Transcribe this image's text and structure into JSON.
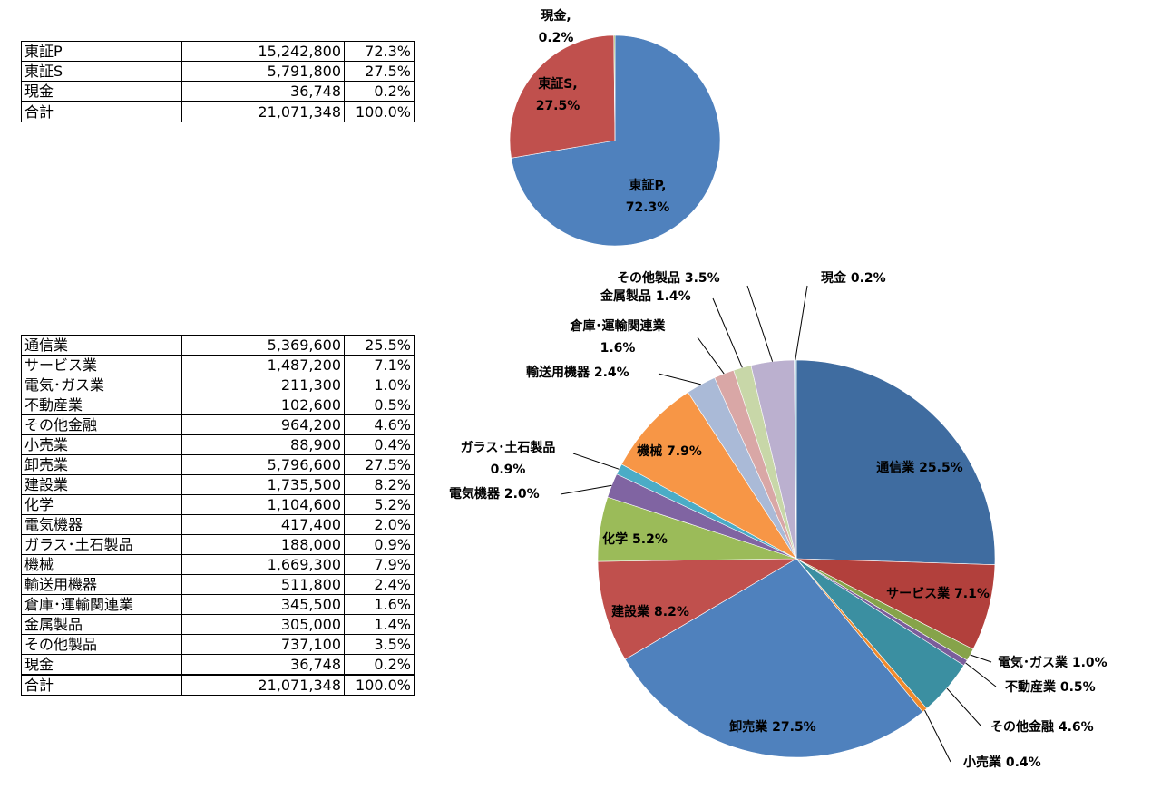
{
  "table1": {
    "rows": [
      {
        "name": "東証P",
        "value": "15,242,800",
        "pct": "72.3%"
      },
      {
        "name": "東証S",
        "value": "5,791,800",
        "pct": "27.5%"
      },
      {
        "name": "現金",
        "value": "36,748",
        "pct": "0.2%"
      }
    ],
    "total": {
      "name": "合計",
      "value": "21,071,348",
      "pct": "100.0%"
    }
  },
  "table2": {
    "rows": [
      {
        "name": "通信業",
        "value": "5,369,600",
        "pct": "25.5%"
      },
      {
        "name": "サービス業",
        "value": "1,487,200",
        "pct": "7.1%"
      },
      {
        "name": "電気･ガス業",
        "value": "211,300",
        "pct": "1.0%"
      },
      {
        "name": "不動産業",
        "value": "102,600",
        "pct": "0.5%"
      },
      {
        "name": "その他金融",
        "value": "964,200",
        "pct": "4.6%"
      },
      {
        "name": "小売業",
        "value": "88,900",
        "pct": "0.4%"
      },
      {
        "name": "卸売業",
        "value": "5,796,600",
        "pct": "27.5%"
      },
      {
        "name": "建設業",
        "value": "1,735,500",
        "pct": "8.2%"
      },
      {
        "name": "化学",
        "value": "1,104,600",
        "pct": "5.2%"
      },
      {
        "name": "電気機器",
        "value": "417,400",
        "pct": "2.0%"
      },
      {
        "name": "ガラス･土石製品",
        "value": "188,000",
        "pct": "0.9%"
      },
      {
        "name": "機械",
        "value": "1,669,300",
        "pct": "7.9%"
      },
      {
        "name": "輸送用機器",
        "value": "511,800",
        "pct": "2.4%"
      },
      {
        "name": "倉庫･運輸関連業",
        "value": "345,500",
        "pct": "1.6%"
      },
      {
        "name": "金属製品",
        "value": "305,000",
        "pct": "1.4%"
      },
      {
        "name": "その他製品",
        "value": "737,100",
        "pct": "3.5%"
      },
      {
        "name": "現金",
        "value": "36,748",
        "pct": "0.2%"
      }
    ],
    "total": {
      "name": "合計",
      "value": "21,071,348",
      "pct": "100.0%"
    }
  },
  "chart_data": [
    {
      "type": "pie",
      "title": "",
      "slices": [
        {
          "label": "東証P",
          "value": 15242800,
          "pct": "72.3%",
          "color": "#4f81bd"
        },
        {
          "label": "東証S",
          "value": 5791800,
          "pct": "27.5%",
          "color": "#c0504d"
        },
        {
          "label": "現金",
          "value": 36748,
          "pct": "0.2%",
          "color": "#9bbb59"
        }
      ]
    },
    {
      "type": "pie",
      "title": "",
      "slices": [
        {
          "label": "通信業",
          "value": 5369600,
          "pct": "25.5%",
          "color": "#3f6ca0"
        },
        {
          "label": "サービス業",
          "value": 1487200,
          "pct": "7.1%",
          "color": "#b2403c"
        },
        {
          "label": "電気･ガス業",
          "value": 211300,
          "pct": "1.0%",
          "color": "#86a34a"
        },
        {
          "label": "不動産業",
          "value": 102600,
          "pct": "0.5%",
          "color": "#7a5d9b"
        },
        {
          "label": "その他金融",
          "value": 964200,
          "pct": "4.6%",
          "color": "#3b8fa1"
        },
        {
          "label": "小売業",
          "value": 88900,
          "pct": "0.4%",
          "color": "#f08a2c"
        },
        {
          "label": "卸売業",
          "value": 5796600,
          "pct": "27.5%",
          "color": "#4f81bd"
        },
        {
          "label": "建設業",
          "value": 1735500,
          "pct": "8.2%",
          "color": "#c0504d"
        },
        {
          "label": "化学",
          "value": 1104600,
          "pct": "5.2%",
          "color": "#9bbb59"
        },
        {
          "label": "電気機器",
          "value": 417400,
          "pct": "2.0%",
          "color": "#8064a2"
        },
        {
          "label": "ガラス･土石製品",
          "value": 188000,
          "pct": "0.9%",
          "color": "#4bacc6"
        },
        {
          "label": "機械",
          "value": 1669300,
          "pct": "7.9%",
          "color": "#f79646"
        },
        {
          "label": "輸送用機器",
          "value": 511800,
          "pct": "2.4%",
          "color": "#aabad7"
        },
        {
          "label": "倉庫･運輸関連業",
          "value": 345500,
          "pct": "1.6%",
          "color": "#d9a7a6"
        },
        {
          "label": "金属製品",
          "value": 305000,
          "pct": "1.4%",
          "color": "#c8d7a8"
        },
        {
          "label": "その他製品",
          "value": 737100,
          "pct": "3.5%",
          "color": "#bbb0cf"
        },
        {
          "label": "現金",
          "value": 36748,
          "pct": "0.2%",
          "color": "#a4d3e0"
        }
      ]
    }
  ]
}
